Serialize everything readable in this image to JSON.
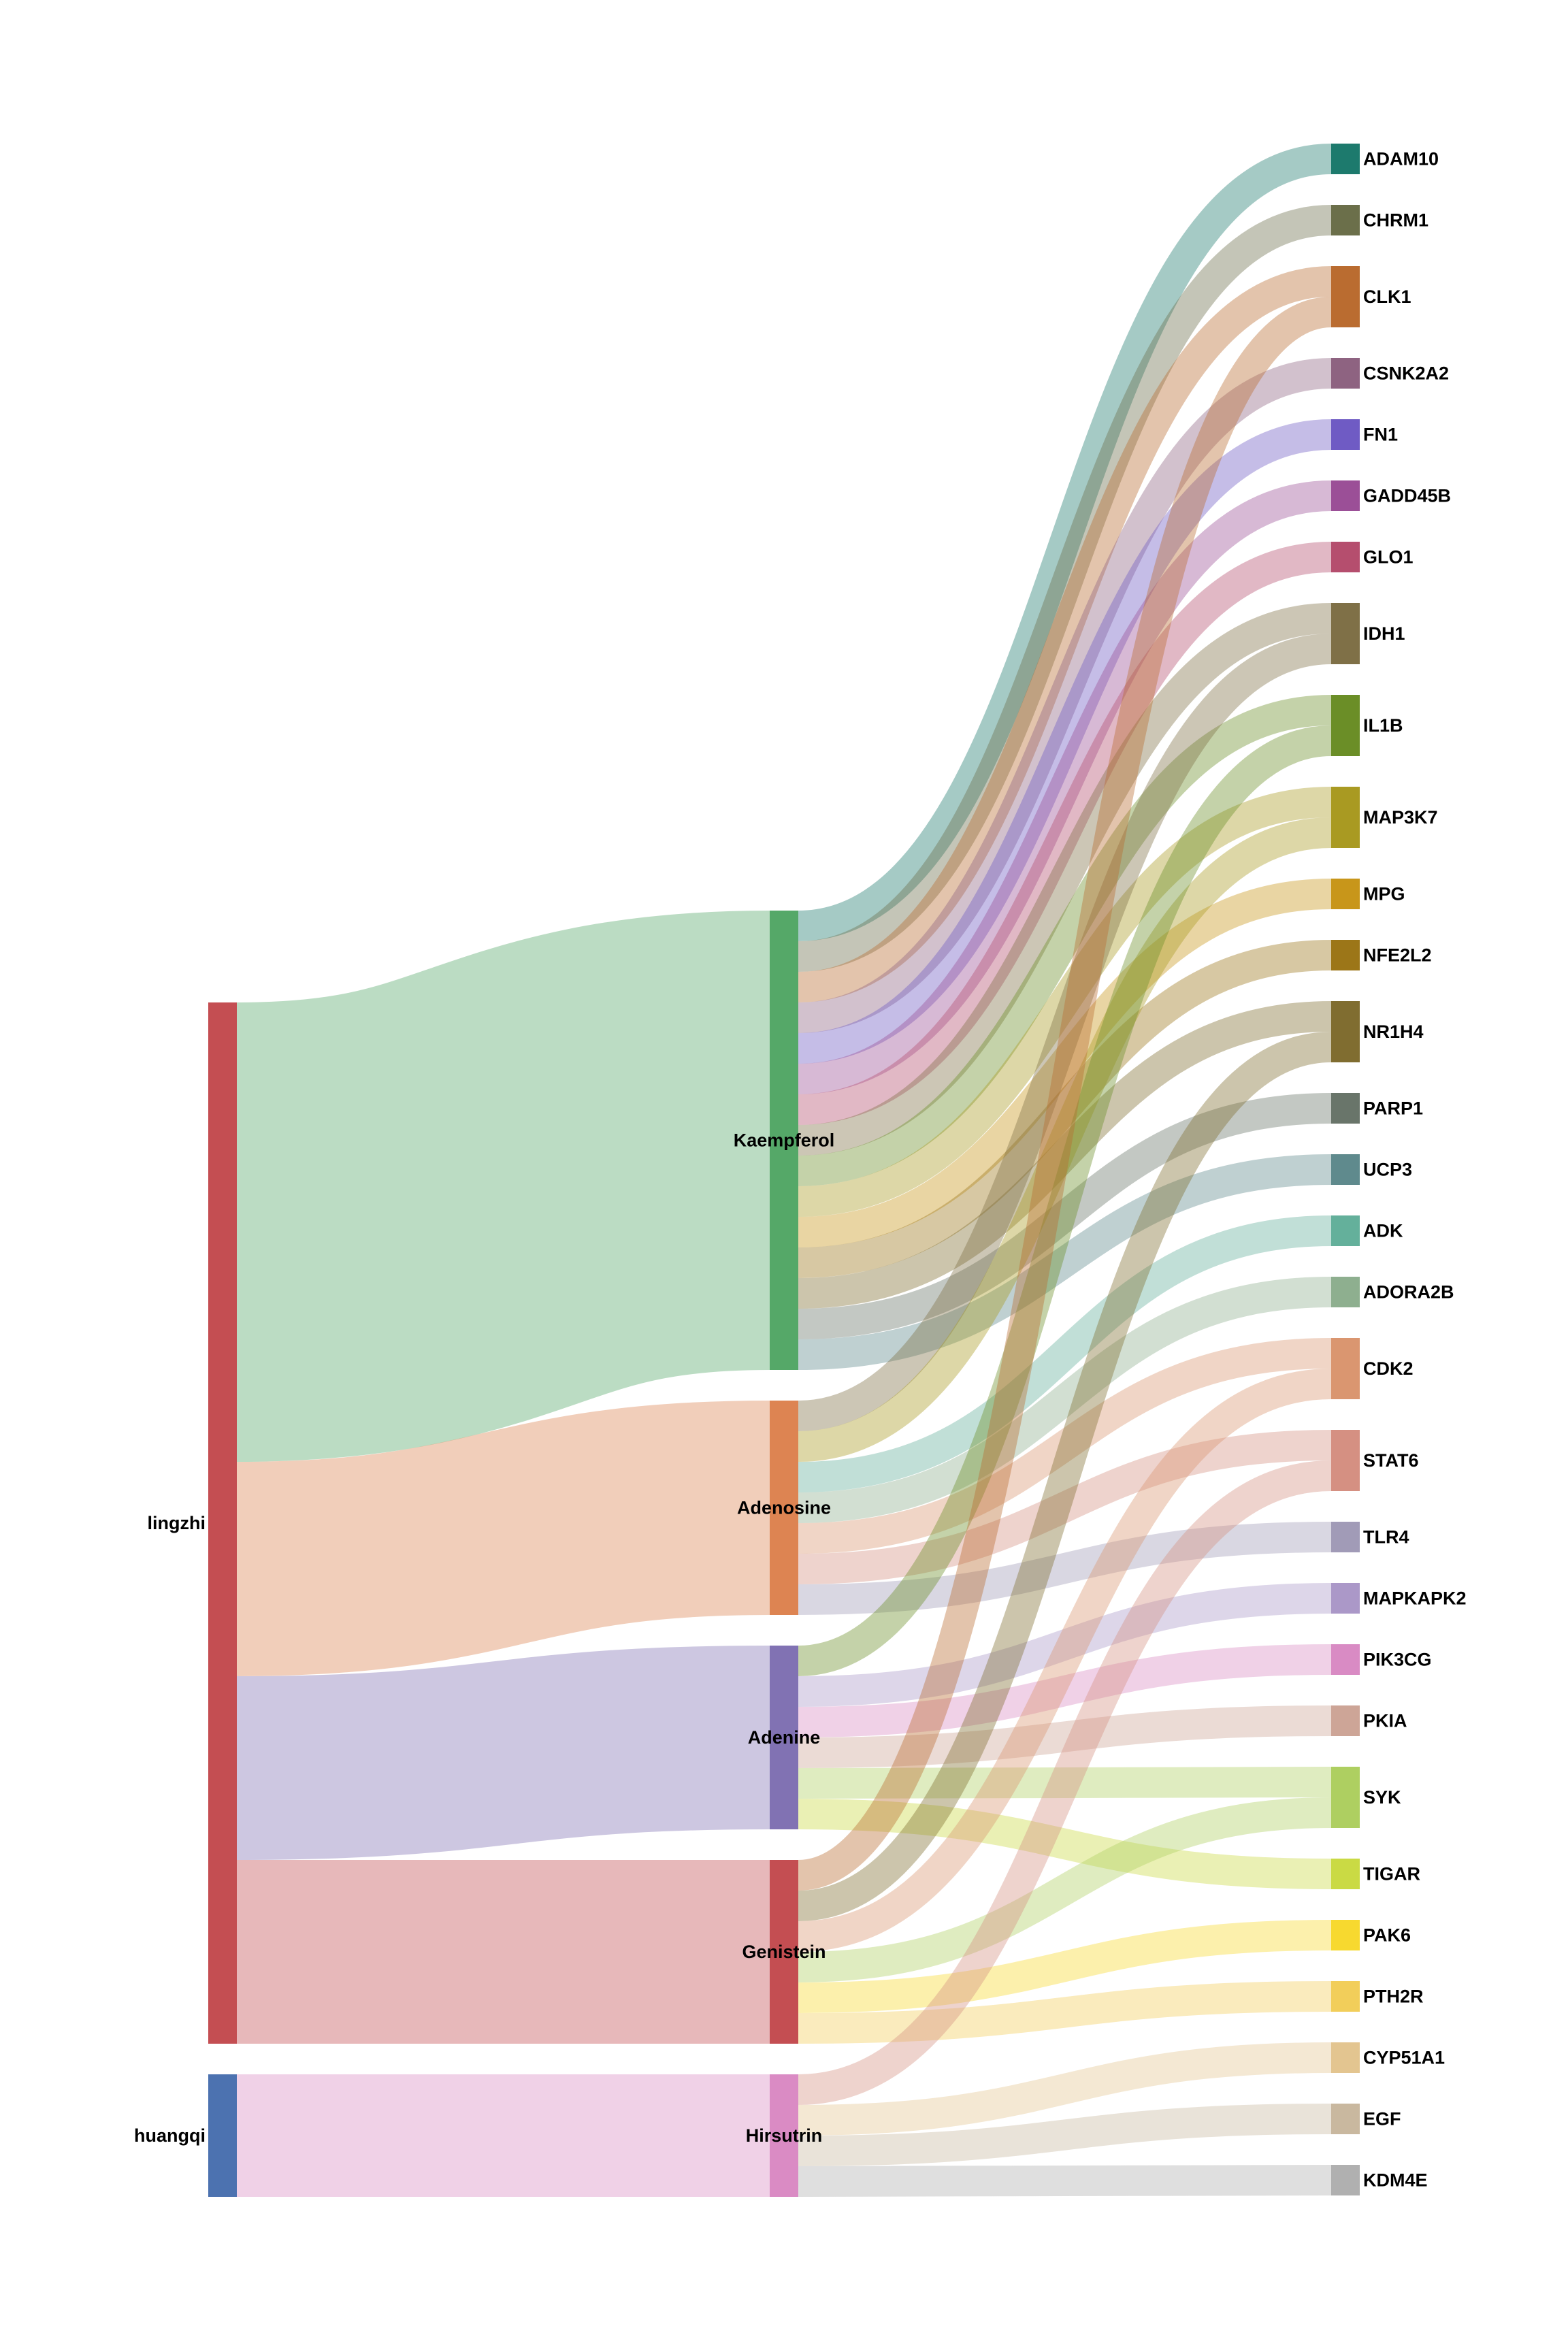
{
  "chart_data": {
    "type": "sankey",
    "title": "",
    "columns": [
      [
        "lingzhi",
        "huangqi"
      ],
      [
        "Kaempferol",
        "Adenosine",
        "Adenine",
        "Genistein",
        "Hirsutrin"
      ],
      [
        "ADAM10",
        "CHRM1",
        "CLK1",
        "CSNK2A2",
        "FN1",
        "GADD45B",
        "GLO1",
        "IDH1",
        "IL1B",
        "MAP3K7",
        "MPG",
        "NFE2L2",
        "NR1H4",
        "PARP1",
        "UCP3",
        "ADK",
        "ADORA2B",
        "CDK2",
        "STAT6",
        "TLR4",
        "MAPKAPK2",
        "PIK3CG",
        "PKIA",
        "SYK",
        "TIGAR",
        "PAK6",
        "PTH2R",
        "CYP51A1",
        "EGF",
        "KDM4E"
      ]
    ],
    "node_colors": {
      "lingzhi": "#C44E52",
      "huangqi": "#4C72B0",
      "Kaempferol": "#55A868",
      "Adenosine": "#DD8452",
      "Adenine": "#8172B3",
      "Genistein": "#C44E52",
      "Hirsutrin": "#DA8BC4",
      "ADAM10": "#1D7A6D",
      "CHRM1": "#6B6F4A",
      "CLK1": "#BA6C30",
      "CSNK2A2": "#8E6381",
      "FN1": "#6F5BC4",
      "GADD45B": "#9B4F97",
      "GLO1": "#B54E6E",
      "IDH1": "#7F7047",
      "IL1B": "#6B8E27",
      "MAP3K7": "#A99A22",
      "MPG": "#C8961A",
      "NFE2L2": "#9C7618",
      "NR1H4": "#806D30",
      "PARP1": "#69756A",
      "UCP3": "#5F8A8D",
      "ADK": "#64B09B",
      "ADORA2B": "#8EAF8F",
      "CDK2": "#DA9670",
      "STAT6": "#D59082",
      "TLR4": "#A19BB7",
      "MAPKAPK2": "#AB98C8",
      "PIK3CG": "#D98BC4",
      "PKIA": "#CDA597",
      "SYK": "#AECF61",
      "TIGAR": "#CADA44",
      "PAK6": "#F7D92F",
      "PTH2R": "#F2CE5A",
      "CYP51A1": "#E3C590",
      "EGF": "#C9B89F",
      "KDM4E": "#B0B0B0"
    },
    "links": [
      {
        "source": "lingzhi",
        "target": "Kaempferol",
        "value": 15
      },
      {
        "source": "lingzhi",
        "target": "Adenosine",
        "value": 7
      },
      {
        "source": "lingzhi",
        "target": "Adenine",
        "value": 6
      },
      {
        "source": "lingzhi",
        "target": "Genistein",
        "value": 6
      },
      {
        "source": "huangqi",
        "target": "Hirsutrin",
        "value": 4
      },
      {
        "source": "Kaempferol",
        "target": "ADAM10",
        "value": 1
      },
      {
        "source": "Kaempferol",
        "target": "CHRM1",
        "value": 1
      },
      {
        "source": "Kaempferol",
        "target": "CLK1",
        "value": 1
      },
      {
        "source": "Kaempferol",
        "target": "CSNK2A2",
        "value": 1
      },
      {
        "source": "Kaempferol",
        "target": "FN1",
        "value": 1
      },
      {
        "source": "Kaempferol",
        "target": "GADD45B",
        "value": 1
      },
      {
        "source": "Kaempferol",
        "target": "GLO1",
        "value": 1
      },
      {
        "source": "Kaempferol",
        "target": "IDH1",
        "value": 1
      },
      {
        "source": "Kaempferol",
        "target": "IL1B",
        "value": 1
      },
      {
        "source": "Kaempferol",
        "target": "MAP3K7",
        "value": 1
      },
      {
        "source": "Kaempferol",
        "target": "MPG",
        "value": 1
      },
      {
        "source": "Kaempferol",
        "target": "NFE2L2",
        "value": 1
      },
      {
        "source": "Kaempferol",
        "target": "NR1H4",
        "value": 1
      },
      {
        "source": "Kaempferol",
        "target": "PARP1",
        "value": 1
      },
      {
        "source": "Kaempferol",
        "target": "UCP3",
        "value": 1
      },
      {
        "source": "Adenosine",
        "target": "IDH1",
        "value": 1
      },
      {
        "source": "Adenosine",
        "target": "MAP3K7",
        "value": 1
      },
      {
        "source": "Adenosine",
        "target": "ADK",
        "value": 1
      },
      {
        "source": "Adenosine",
        "target": "ADORA2B",
        "value": 1
      },
      {
        "source": "Adenosine",
        "target": "CDK2",
        "value": 1
      },
      {
        "source": "Adenosine",
        "target": "STAT6",
        "value": 1
      },
      {
        "source": "Adenosine",
        "target": "TLR4",
        "value": 1
      },
      {
        "source": "Adenine",
        "target": "IL1B",
        "value": 1
      },
      {
        "source": "Adenine",
        "target": "MAPKAPK2",
        "value": 1
      },
      {
        "source": "Adenine",
        "target": "PIK3CG",
        "value": 1
      },
      {
        "source": "Adenine",
        "target": "PKIA",
        "value": 1
      },
      {
        "source": "Adenine",
        "target": "SYK",
        "value": 1
      },
      {
        "source": "Adenine",
        "target": "TIGAR",
        "value": 1
      },
      {
        "source": "Genistein",
        "target": "CLK1",
        "value": 1
      },
      {
        "source": "Genistein",
        "target": "NR1H4",
        "value": 1
      },
      {
        "source": "Genistein",
        "target": "CDK2",
        "value": 1
      },
      {
        "source": "Genistein",
        "target": "SYK",
        "value": 1
      },
      {
        "source": "Genistein",
        "target": "PAK6",
        "value": 1
      },
      {
        "source": "Genistein",
        "target": "PTH2R",
        "value": 1
      },
      {
        "source": "Hirsutrin",
        "target": "STAT6",
        "value": 1
      },
      {
        "source": "Hirsutrin",
        "target": "CYP51A1",
        "value": 1
      },
      {
        "source": "Hirsutrin",
        "target": "EGF",
        "value": 1
      },
      {
        "source": "Hirsutrin",
        "target": "KDM4E",
        "value": 1
      }
    ],
    "link_color_rule": "target-node-color",
    "link_opacity": 0.4,
    "legend": "none",
    "grid": false
  }
}
